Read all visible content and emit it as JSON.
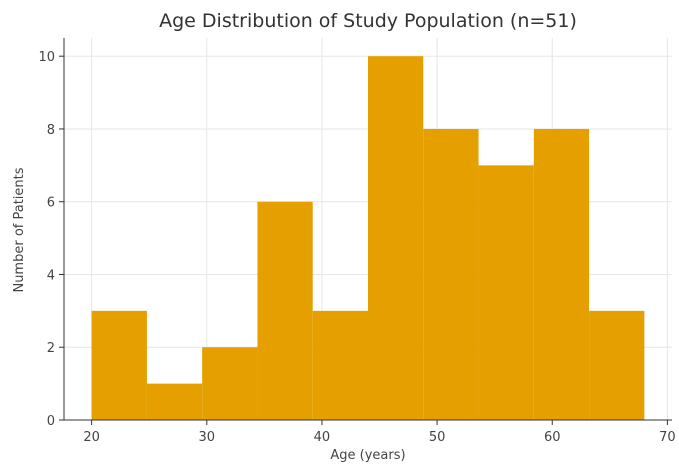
{
  "chart_data": {
    "type": "bar",
    "title": "Age Distribution of Study Population (n=51)",
    "xlabel": "Age (years)",
    "ylabel": "Number of Patients",
    "bins": [
      {
        "start": 20,
        "end": 24.8,
        "count": 3
      },
      {
        "start": 24.8,
        "end": 29.6,
        "count": 1
      },
      {
        "start": 29.6,
        "end": 34.4,
        "count": 2
      },
      {
        "start": 34.4,
        "end": 39.2,
        "count": 6
      },
      {
        "start": 39.2,
        "end": 44.0,
        "count": 3
      },
      {
        "start": 44.0,
        "end": 48.8,
        "count": 10
      },
      {
        "start": 48.8,
        "end": 53.6,
        "count": 8
      },
      {
        "start": 53.6,
        "end": 58.4,
        "count": 7
      },
      {
        "start": 58.4,
        "end": 63.2,
        "count": 8
      },
      {
        "start": 63.2,
        "end": 68.0,
        "count": 3
      }
    ],
    "xlim": [
      17.6,
      70.4
    ],
    "ylim": [
      0,
      10.5
    ],
    "x_ticks": [
      20,
      30,
      40,
      50,
      60,
      70
    ],
    "y_ticks": [
      0,
      2,
      4,
      6,
      8,
      10
    ],
    "grid": true,
    "bar_color": "#E5A000",
    "legend": "none"
  }
}
